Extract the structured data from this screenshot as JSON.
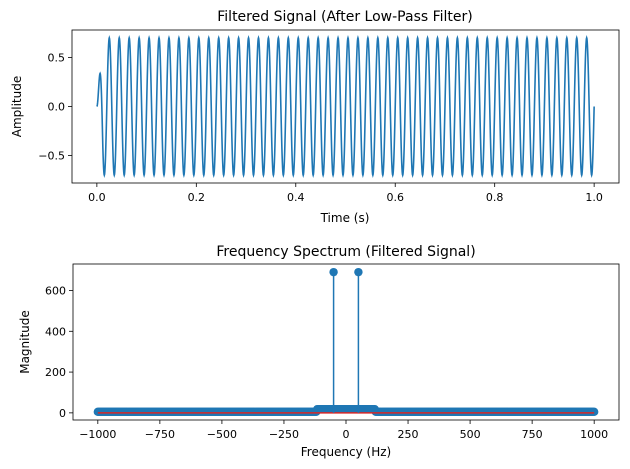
{
  "chart_data": [
    {
      "type": "line",
      "title": "Filtered Signal (After Low-Pass Filter)",
      "xlabel": "Time (s)",
      "ylabel": "Amplitude",
      "xlim": [
        -0.05,
        1.05
      ],
      "ylim": [
        -0.78,
        0.78
      ],
      "xticks": [
        0.0,
        0.2,
        0.4,
        0.6,
        0.8,
        1.0
      ],
      "xtick_labels": [
        "0.0",
        "0.2",
        "0.4",
        "0.6",
        "0.8",
        "1.0"
      ],
      "yticks": [
        0.5,
        0.0,
        -0.5
      ],
      "ytick_labels": [
        "0.5",
        "0.0",
        "−0.5"
      ],
      "grid": false,
      "series": [
        {
          "color": "#1f77b4",
          "frequency_hz": 50,
          "amplitude": 0.7,
          "t_start": 0.0,
          "t_end": 1.0
        }
      ]
    },
    {
      "type": "stem",
      "title": "Frequency Spectrum (Filtered Signal)",
      "xlabel": "Frequency (Hz)",
      "ylabel": "Magnitude",
      "xlim": [
        -1100,
        1100
      ],
      "ylim": [
        -35,
        730
      ],
      "xticks": [
        -1000,
        -750,
        -500,
        -250,
        0,
        250,
        500,
        750,
        1000
      ],
      "xtick_labels": [
        "−1000",
        "−750",
        "−500",
        "−250",
        "0",
        "250",
        "500",
        "750",
        "1000"
      ],
      "yticks": [
        0,
        200,
        400,
        600
      ],
      "ytick_labels": [
        "0",
        "200",
        "400",
        "600"
      ],
      "grid": false,
      "series": [
        {
          "marker_color": "#1f77b4",
          "baseline_color": "#d62728",
          "peaks": [
            {
              "x": -50,
              "y": 690
            },
            {
              "x": 50,
              "y": 690
            }
          ],
          "floor_range": [
            -1000,
            1000
          ],
          "near_peak_level": 18,
          "floor_level": 5
        }
      ]
    }
  ]
}
